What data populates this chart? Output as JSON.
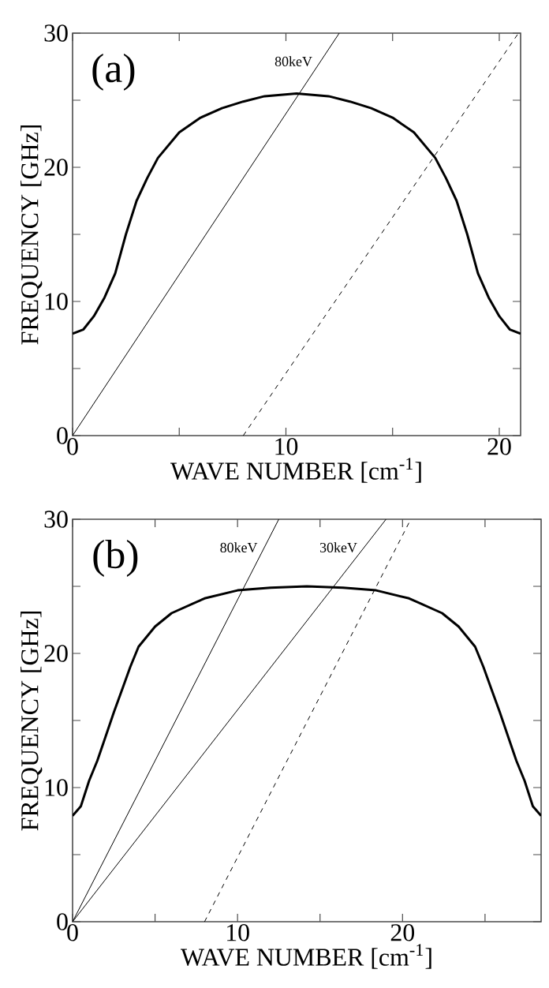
{
  "chart_data": [
    {
      "type": "line",
      "title": "(a)",
      "xlabel": "WAVE NUMBER [cm$^{-1}$]",
      "ylabel": "FREQUENCY [GHz]",
      "xlim": [
        0,
        21
      ],
      "ylim": [
        0,
        30
      ],
      "xticks": [
        0,
        {
          "value": 5,
          "label": null
        },
        10,
        {
          "value": 15,
          "label": null
        },
        20
      ],
      "yticks": [
        0,
        {
          "value": 5,
          "label": null
        },
        10,
        {
          "value": 15,
          "label": null
        },
        20,
        {
          "value": 25,
          "label": null
        },
        30
      ],
      "marker": "none",
      "series": [
        {
          "color": "#000000",
          "line_style": "solid",
          "x": [
            0,
            0.5,
            1,
            1.5,
            2,
            2.5,
            3,
            3.5,
            4,
            5,
            6,
            7,
            8,
            9,
            10.5,
            12,
            13,
            14,
            15,
            16,
            17,
            17.5,
            18,
            18.5,
            19,
            19.5,
            20,
            20.5,
            21
          ],
          "values": [
            7.6,
            7.9,
            8.9,
            10.3,
            12.1,
            15,
            17.5,
            19.2,
            20.7,
            22.6,
            23.7,
            24.4,
            24.9,
            25.3,
            25.5,
            25.3,
            24.9,
            24.4,
            23.7,
            22.6,
            20.7,
            19.2,
            17.5,
            15,
            12.1,
            10.3,
            8.9,
            7.9,
            7.6
          ]
        },
        {
          "name": "80keV",
          "color": "#000000",
          "line_style": "solid",
          "x": [
            0,
            12.5
          ],
          "values": [
            0,
            30
          ]
        },
        {
          "color": "#000000",
          "line_style": "dashed",
          "x": [
            8,
            20.9
          ],
          "values": [
            0,
            30
          ]
        }
      ]
    },
    {
      "type": "line",
      "title": "(b)",
      "xlabel": "WAVE NUMBER [cm$^{-1}$]",
      "ylabel": "FREQUENCY [GHz]",
      "xlim": [
        0,
        28.4
      ],
      "ylim": [
        0,
        30
      ],
      "xticks": [
        0,
        {
          "value": 5,
          "label": null
        },
        10,
        {
          "value": 15,
          "label": null
        },
        20,
        {
          "value": 25,
          "label": null
        }
      ],
      "yticks": [
        0,
        {
          "value": 5,
          "label": null
        },
        10,
        {
          "value": 15,
          "label": null
        },
        20,
        {
          "value": 25,
          "label": null
        },
        30
      ],
      "marker": "none",
      "series": [
        {
          "color": "#000000",
          "line_style": "solid",
          "x": [
            0,
            0.5,
            1,
            1.5,
            2,
            2.5,
            3,
            3.5,
            4,
            5,
            6,
            8,
            10,
            12,
            14.2,
            16.4,
            18.4,
            20.4,
            22.4,
            23.4,
            24.4,
            24.9,
            25.4,
            25.9,
            26.4,
            26.9,
            27.4,
            27.9,
            28.4
          ],
          "values": [
            7.9,
            8.6,
            10.5,
            12,
            13.8,
            15.6,
            17.3,
            19,
            20.5,
            22,
            23,
            24.1,
            24.7,
            24.9,
            25.0,
            24.9,
            24.7,
            24.1,
            23,
            22,
            20.5,
            19,
            17.3,
            15.6,
            13.8,
            12,
            10.5,
            8.6,
            7.9
          ]
        },
        {
          "name": "80keV",
          "color": "#000000",
          "line_style": "solid",
          "x": [
            0,
            12.5
          ],
          "values": [
            0,
            30
          ]
        },
        {
          "name": "30keV",
          "color": "#000000",
          "line_style": "solid",
          "x": [
            0,
            19.0
          ],
          "values": [
            0,
            30
          ]
        },
        {
          "color": "#000000",
          "line_style": "dashed",
          "x": [
            8,
            20.5
          ],
          "values": [
            0,
            30
          ]
        }
      ]
    }
  ]
}
